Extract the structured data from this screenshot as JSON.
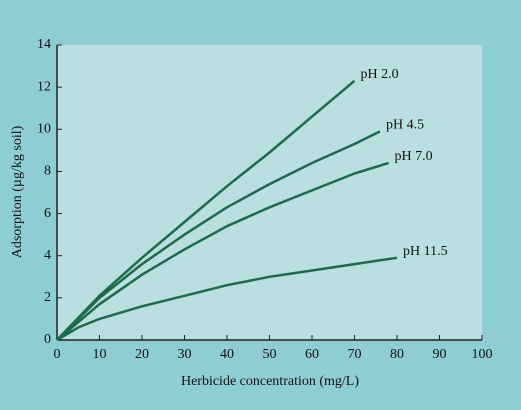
{
  "chart_data": {
    "type": "line",
    "xlabel": "Herbicide concentration (mg/L)",
    "ylabel": "Adsorption (µg/kg soil)",
    "xlim": [
      0,
      100
    ],
    "xticks": [
      0,
      10,
      20,
      30,
      40,
      50,
      60,
      70,
      80,
      90,
      100
    ],
    "ylim": [
      0,
      14
    ],
    "yticks": [
      0,
      2,
      4,
      6,
      8,
      10,
      12,
      14
    ],
    "series": [
      {
        "name": "pH 2.0",
        "color": "#1d6a4c",
        "x": [
          0,
          10,
          20,
          30,
          40,
          50,
          60,
          70
        ],
        "values": [
          0,
          2.1,
          3.9,
          5.6,
          7.3,
          8.9,
          10.6,
          12.3
        ]
      },
      {
        "name": "pH 4.5",
        "color": "#1d6a4c",
        "x": [
          0,
          10,
          20,
          30,
          40,
          50,
          60,
          70,
          76
        ],
        "values": [
          0,
          2.0,
          3.6,
          5.0,
          6.3,
          7.4,
          8.4,
          9.3,
          9.9
        ]
      },
      {
        "name": "pH 7.0",
        "color": "#1d6a4c",
        "x": [
          0,
          10,
          20,
          30,
          40,
          50,
          60,
          70,
          78
        ],
        "values": [
          0,
          1.7,
          3.1,
          4.3,
          5.4,
          6.3,
          7.1,
          7.9,
          8.4
        ]
      },
      {
        "name": "pH 11.5",
        "color": "#1d6a4c",
        "x": [
          0,
          5,
          10,
          20,
          30,
          40,
          50,
          60,
          70,
          80
        ],
        "values": [
          0,
          0.6,
          1.0,
          1.6,
          2.1,
          2.6,
          3.0,
          3.3,
          3.6,
          3.9
        ]
      }
    ]
  }
}
